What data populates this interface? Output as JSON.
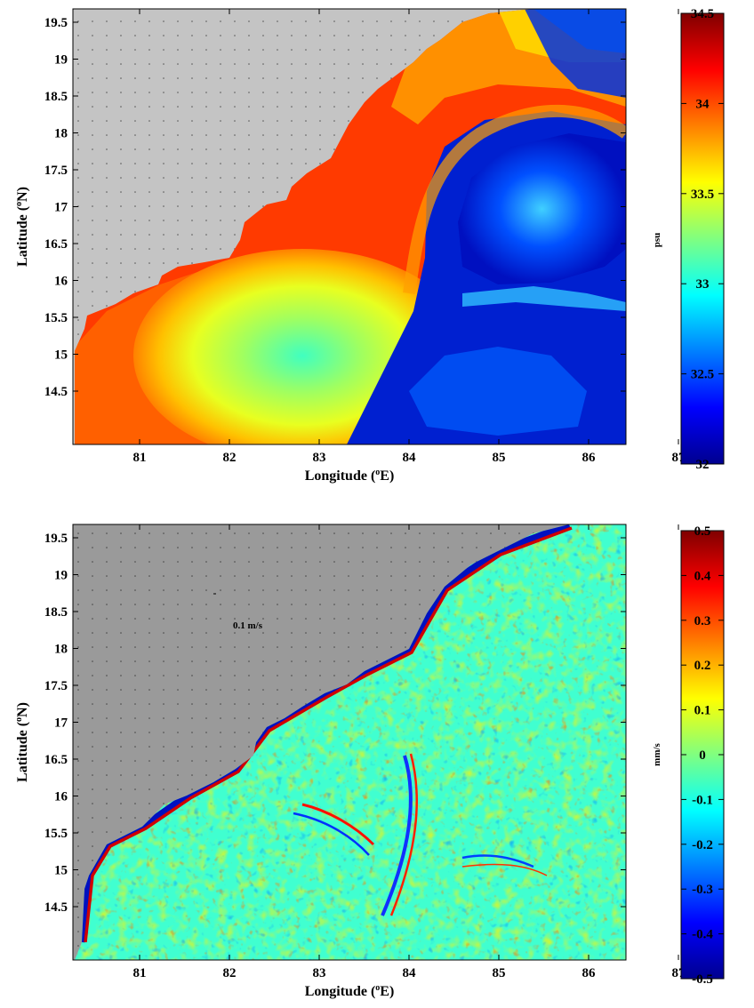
{
  "figure": {
    "panels": [
      {
        "id": "salinity",
        "xlabel_main": "Longitude (",
        "xlabel_sup": "o",
        "xlabel_end": "E)",
        "ylabel_main": "Latitude (",
        "ylabel_sup": "o",
        "ylabel_end": "N)",
        "x_ticks": [
          "81",
          "82",
          "83",
          "84",
          "85",
          "86",
          "87"
        ],
        "y_ticks": [
          "19.5",
          "19",
          "18.5",
          "18",
          "17.5",
          "17",
          "16.5",
          "16",
          "15.5",
          "15",
          "14.5"
        ],
        "colorbar": {
          "label": "psu",
          "ticks": [
            "34.5",
            "34",
            "33.5",
            "33",
            "32.5",
            "32"
          ],
          "range": [
            32,
            34.5
          ],
          "colormap": "jet"
        },
        "land_color": "#c4c4c4"
      },
      {
        "id": "vertical_velocity",
        "xlabel_main": "Longitude (",
        "xlabel_sup": "o",
        "xlabel_end": "E)",
        "ylabel_main": "Latitude (",
        "ylabel_sup": "o",
        "ylabel_end": "N)",
        "x_ticks": [
          "81",
          "82",
          "83",
          "84",
          "85",
          "86",
          "87"
        ],
        "y_ticks": [
          "19.5",
          "19",
          "18.5",
          "18",
          "17.5",
          "17",
          "16.5",
          "16",
          "15.5",
          "15",
          "14.5"
        ],
        "reference_vector_label": "0.1 m/s",
        "colorbar": {
          "label": "mm/s",
          "ticks": [
            "0.5",
            "0.4",
            "0.3",
            "0.2",
            "0.1",
            "0",
            "-0.1",
            "-0.2",
            "-0.3",
            "-0.4",
            "-0.5"
          ],
          "range": [
            -0.5,
            0.5
          ],
          "colormap": "jet"
        },
        "land_color": "#9a9a9a"
      }
    ],
    "jet_colors": [
      "#00008f",
      "#0000ff",
      "#0080ff",
      "#00ffff",
      "#80ff80",
      "#ffff00",
      "#ff8000",
      "#ff0000",
      "#800000"
    ]
  }
}
